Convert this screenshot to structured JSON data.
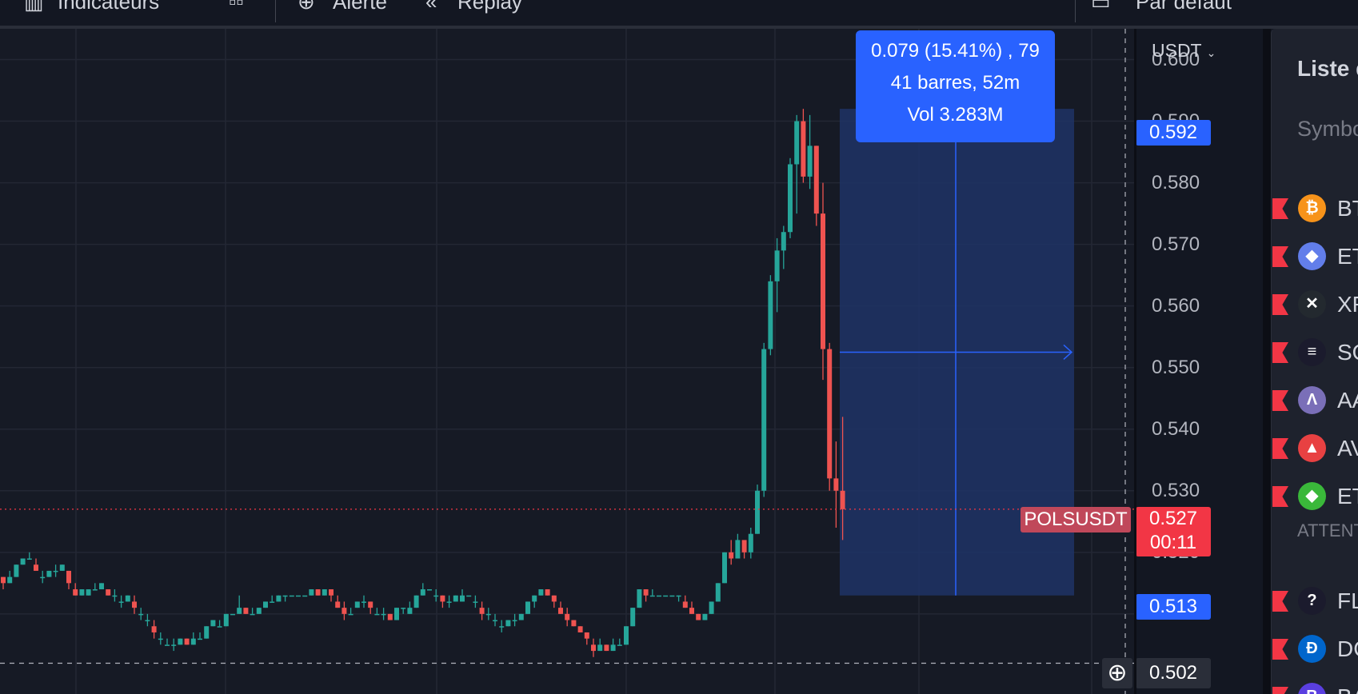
{
  "toolbar": {
    "indicators_label": "Indicateurs",
    "alert_label": "Alerte",
    "replay_label": "Replay",
    "layout_label": "Par défaut"
  },
  "currency": {
    "label": "USDT"
  },
  "price_axis": {
    "ticks": [
      "0.600",
      "0.590",
      "0.580",
      "0.570",
      "0.560",
      "0.550",
      "0.540",
      "0.530",
      "0.520",
      "0.510"
    ],
    "range_high": "0.592",
    "range_low": "0.513",
    "current_price": "0.527",
    "countdown": "00:11",
    "crosshair_price": "0.502"
  },
  "symbol_label": "POLSUSDT",
  "measure": {
    "line1": "0.079 (15.41%) , 79",
    "line2": "41 barres, 52m",
    "line3": "Vol 3.283M"
  },
  "chart_data": {
    "type": "candlestick",
    "y_range": [
      0.497,
      0.605
    ],
    "candles": [
      [
        0.516,
        0.516,
        0.516,
        0.515,
        0.514
      ],
      [
        0.515,
        0.516,
        0.517,
        0.516,
        0.515
      ],
      [
        0.516,
        0.517,
        0.518,
        0.518,
        0.516
      ],
      [
        0.518,
        0.519,
        0.519,
        0.519,
        0.518
      ],
      [
        0.519,
        0.52,
        0.52,
        0.519,
        0.519
      ],
      [
        0.518,
        0.518,
        0.519,
        0.517,
        0.517
      ],
      [
        0.516,
        0.516,
        0.517,
        0.516,
        0.515
      ],
      [
        0.516,
        0.516,
        0.517,
        0.517,
        0.516
      ],
      [
        0.517,
        0.517,
        0.518,
        0.517,
        0.516
      ],
      [
        0.517,
        0.518,
        0.518,
        0.518,
        0.517
      ],
      [
        0.517,
        0.517,
        0.517,
        0.515,
        0.514
      ],
      [
        0.514,
        0.514,
        0.515,
        0.513,
        0.513
      ],
      [
        0.513,
        0.514,
        0.514,
        0.514,
        0.513
      ],
      [
        0.513,
        0.513,
        0.514,
        0.514,
        0.513
      ],
      [
        0.514,
        0.514,
        0.515,
        0.514,
        0.514
      ],
      [
        0.514,
        0.515,
        0.515,
        0.515,
        0.514
      ],
      [
        0.514,
        0.514,
        0.514,
        0.513,
        0.513
      ],
      [
        0.513,
        0.513,
        0.514,
        0.513,
        0.512
      ],
      [
        0.512,
        0.512,
        0.513,
        0.512,
        0.511
      ],
      [
        0.512,
        0.513,
        0.513,
        0.513,
        0.512
      ],
      [
        0.512,
        0.512,
        0.513,
        0.511,
        0.51
      ],
      [
        0.51,
        0.51,
        0.511,
        0.51,
        0.509
      ],
      [
        0.509,
        0.51,
        0.51,
        0.509,
        0.508
      ],
      [
        0.508,
        0.508,
        0.509,
        0.507,
        0.506
      ],
      [
        0.506,
        0.506,
        0.507,
        0.506,
        0.505
      ],
      [
        0.505,
        0.506,
        0.506,
        0.505,
        0.505
      ],
      [
        0.505,
        0.505,
        0.506,
        0.505,
        0.504
      ],
      [
        0.505,
        0.505,
        0.506,
        0.506,
        0.505
      ],
      [
        0.506,
        0.506,
        0.506,
        0.505,
        0.505
      ],
      [
        0.505,
        0.506,
        0.507,
        0.506,
        0.505
      ],
      [
        0.506,
        0.507,
        0.507,
        0.506,
        0.506
      ],
      [
        0.506,
        0.506,
        0.508,
        0.508,
        0.506
      ],
      [
        0.508,
        0.508,
        0.509,
        0.509,
        0.508
      ],
      [
        0.508,
        0.509,
        0.509,
        0.508,
        0.508
      ],
      [
        0.508,
        0.508,
        0.51,
        0.51,
        0.508
      ],
      [
        0.51,
        0.51,
        0.51,
        0.51,
        0.51
      ],
      [
        0.51,
        0.511,
        0.513,
        0.511,
        0.51
      ],
      [
        0.511,
        0.511,
        0.511,
        0.51,
        0.51
      ],
      [
        0.51,
        0.511,
        0.511,
        0.51,
        0.51
      ],
      [
        0.51,
        0.511,
        0.511,
        0.511,
        0.51
      ],
      [
        0.511,
        0.512,
        0.512,
        0.512,
        0.511
      ],
      [
        0.512,
        0.512,
        0.513,
        0.512,
        0.512
      ],
      [
        0.512,
        0.512,
        0.513,
        0.513,
        0.512
      ],
      [
        0.513,
        0.513,
        0.513,
        0.513,
        0.512
      ],
      [
        0.513,
        0.513,
        0.513,
        0.513,
        0.513
      ],
      [
        0.513,
        0.513,
        0.513,
        0.513,
        0.513
      ],
      [
        0.513,
        0.513,
        0.513,
        0.513,
        0.513
      ],
      [
        0.513,
        0.513,
        0.514,
        0.514,
        0.513
      ],
      [
        0.514,
        0.514,
        0.514,
        0.513,
        0.513
      ],
      [
        0.513,
        0.513,
        0.514,
        0.514,
        0.513
      ],
      [
        0.514,
        0.514,
        0.514,
        0.513,
        0.512
      ],
      [
        0.512,
        0.512,
        0.513,
        0.511,
        0.511
      ],
      [
        0.511,
        0.511,
        0.512,
        0.51,
        0.509
      ],
      [
        0.51,
        0.511,
        0.511,
        0.51,
        0.51
      ],
      [
        0.511,
        0.511,
        0.512,
        0.512,
        0.511
      ],
      [
        0.512,
        0.512,
        0.513,
        0.512,
        0.511
      ],
      [
        0.512,
        0.512,
        0.512,
        0.511,
        0.51
      ],
      [
        0.51,
        0.511,
        0.511,
        0.51,
        0.51
      ],
      [
        0.51,
        0.51,
        0.511,
        0.51,
        0.509
      ],
      [
        0.51,
        0.51,
        0.51,
        0.509,
        0.509
      ],
      [
        0.509,
        0.509,
        0.511,
        0.511,
        0.509
      ],
      [
        0.511,
        0.511,
        0.511,
        0.511,
        0.51
      ],
      [
        0.51,
        0.511,
        0.512,
        0.511,
        0.51
      ],
      [
        0.511,
        0.511,
        0.513,
        0.513,
        0.511
      ],
      [
        0.513,
        0.513,
        0.515,
        0.514,
        0.513
      ],
      [
        0.514,
        0.514,
        0.514,
        0.514,
        0.514
      ],
      [
        0.513,
        0.514,
        0.514,
        0.513,
        0.512
      ],
      [
        0.513,
        0.513,
        0.513,
        0.512,
        0.511
      ],
      [
        0.512,
        0.512,
        0.513,
        0.512,
        0.511
      ],
      [
        0.512,
        0.512,
        0.513,
        0.513,
        0.512
      ],
      [
        0.512,
        0.512,
        0.514,
        0.513,
        0.512
      ],
      [
        0.513,
        0.513,
        0.513,
        0.513,
        0.513
      ],
      [
        0.512,
        0.512,
        0.513,
        0.512,
        0.511
      ],
      [
        0.511,
        0.511,
        0.512,
        0.51,
        0.509
      ],
      [
        0.51,
        0.51,
        0.511,
        0.51,
        0.509
      ],
      [
        0.509,
        0.509,
        0.51,
        0.509,
        0.508
      ],
      [
        0.508,
        0.508,
        0.509,
        0.508,
        0.507
      ],
      [
        0.508,
        0.509,
        0.509,
        0.509,
        0.508
      ],
      [
        0.509,
        0.509,
        0.51,
        0.509,
        0.508
      ],
      [
        0.509,
        0.51,
        0.51,
        0.51,
        0.509
      ],
      [
        0.51,
        0.51,
        0.512,
        0.512,
        0.51
      ],
      [
        0.512,
        0.512,
        0.513,
        0.513,
        0.511
      ],
      [
        0.513,
        0.513,
        0.514,
        0.514,
        0.513
      ],
      [
        0.514,
        0.514,
        0.514,
        0.513,
        0.513
      ],
      [
        0.513,
        0.513,
        0.513,
        0.512,
        0.511
      ],
      [
        0.511,
        0.511,
        0.512,
        0.51,
        0.51
      ],
      [
        0.51,
        0.51,
        0.511,
        0.509,
        0.508
      ],
      [
        0.509,
        0.509,
        0.509,
        0.508,
        0.508
      ],
      [
        0.508,
        0.508,
        0.508,
        0.507,
        0.507
      ],
      [
        0.507,
        0.507,
        0.507,
        0.506,
        0.505
      ],
      [
        0.505,
        0.505,
        0.506,
        0.504,
        0.503
      ],
      [
        0.504,
        0.505,
        0.506,
        0.505,
        0.504
      ],
      [
        0.505,
        0.505,
        0.505,
        0.504,
        0.504
      ],
      [
        0.504,
        0.504,
        0.506,
        0.505,
        0.504
      ],
      [
        0.505,
        0.505,
        0.506,
        0.505,
        0.505
      ],
      [
        0.505,
        0.506,
        0.508,
        0.508,
        0.505
      ],
      [
        0.508,
        0.508,
        0.511,
        0.511,
        0.508
      ],
      [
        0.511,
        0.511,
        0.514,
        0.514,
        0.511
      ],
      [
        0.514,
        0.514,
        0.514,
        0.513,
        0.512
      ],
      [
        0.513,
        0.513,
        0.514,
        0.513,
        0.513
      ],
      [
        0.513,
        0.513,
        0.513,
        0.513,
        0.513
      ],
      [
        0.513,
        0.513,
        0.513,
        0.513,
        0.513
      ],
      [
        0.513,
        0.513,
        0.513,
        0.513,
        0.513
      ],
      [
        0.513,
        0.513,
        0.513,
        0.513,
        0.512
      ],
      [
        0.512,
        0.512,
        0.513,
        0.511,
        0.511
      ],
      [
        0.511,
        0.511,
        0.512,
        0.51,
        0.51
      ],
      [
        0.51,
        0.51,
        0.51,
        0.509,
        0.509
      ],
      [
        0.509,
        0.509,
        0.51,
        0.51,
        0.509
      ],
      [
        0.51,
        0.51,
        0.512,
        0.512,
        0.51
      ],
      [
        0.512,
        0.512,
        0.515,
        0.515,
        0.512
      ],
      [
        0.515,
        0.515,
        0.52,
        0.52,
        0.515
      ],
      [
        0.52,
        0.52,
        0.522,
        0.519,
        0.518
      ],
      [
        0.519,
        0.519,
        0.523,
        0.522,
        0.519
      ],
      [
        0.522,
        0.522,
        0.521,
        0.52,
        0.519
      ],
      [
        0.52,
        0.52,
        0.524,
        0.523,
        0.519
      ],
      [
        0.523,
        0.523,
        0.531,
        0.53,
        0.523
      ],
      [
        0.53,
        0.53,
        0.554,
        0.553,
        0.529
      ],
      [
        0.553,
        0.553,
        0.565,
        0.564,
        0.552
      ],
      [
        0.564,
        0.564,
        0.571,
        0.569,
        0.559
      ],
      [
        0.569,
        0.569,
        0.573,
        0.572,
        0.566
      ],
      [
        0.572,
        0.572,
        0.584,
        0.583,
        0.571
      ],
      [
        0.583,
        0.583,
        0.591,
        0.59,
        0.575
      ],
      [
        0.59,
        0.59,
        0.592,
        0.581,
        0.58
      ],
      [
        0.581,
        0.581,
        0.591,
        0.586,
        0.579
      ],
      [
        0.586,
        0.586,
        0.586,
        0.575,
        0.573
      ],
      [
        0.575,
        0.575,
        0.58,
        0.553,
        0.548
      ],
      [
        0.553,
        0.553,
        0.554,
        0.532,
        0.53
      ],
      [
        0.532,
        0.532,
        0.538,
        0.53,
        0.524
      ],
      [
        0.53,
        0.53,
        0.542,
        0.527,
        0.522
      ]
    ]
  },
  "watchlist": {
    "title": "Liste de surveillance",
    "column_header": "Symbole",
    "attention_label": "ATTENTION",
    "items": [
      {
        "symbol": "BTCUSDT",
        "glyph": "₿",
        "color": "#f7931a"
      },
      {
        "symbol": "ETHUSDT",
        "glyph": "◆",
        "color": "#627eea"
      },
      {
        "symbol": "XRPUSDT",
        "glyph": "✕",
        "color": "#23292f"
      },
      {
        "symbol": "SOLUSDT",
        "glyph": "≡",
        "color": "#1b1b2d"
      },
      {
        "symbol": "AAVEUSDT",
        "glyph": "Λ",
        "color": "#7a6fb8"
      },
      {
        "symbol": "AVAXUSDT",
        "glyph": "▲",
        "color": "#e84142"
      },
      {
        "symbol": "ETCUSDT",
        "glyph": "◆",
        "color": "#3ab83a"
      }
    ],
    "attention_items": [
      {
        "symbol": "FLUXUSDT",
        "glyph": "?",
        "color": "#1b1b2d"
      },
      {
        "symbol": "DGBUSDT",
        "glyph": "Ð",
        "color": "#0066cc"
      },
      {
        "symbol": "BATUSDT",
        "glyph": "B",
        "color": "#5a3fe0"
      }
    ]
  }
}
